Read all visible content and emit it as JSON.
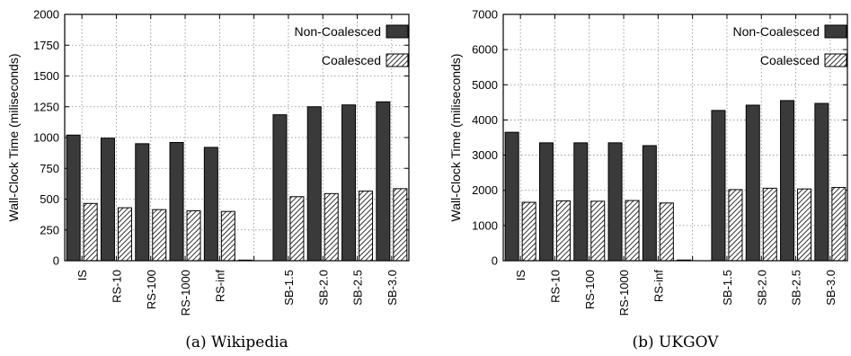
{
  "colors": {
    "non_coalesced": "#3a3a3a",
    "coalesced_hatch": "#000000"
  },
  "chart_data": [
    {
      "type": "bar",
      "caption": "(a) Wikipedia",
      "ylabel": "Wall-Clock Time (miliseconds)",
      "xlabel": "",
      "ylim": [
        0,
        2000
      ],
      "yticks": [
        "0",
        "250",
        "500",
        "750",
        "1000",
        "1250",
        "1500",
        "1750",
        "2000"
      ],
      "ytick_values": [
        0,
        250,
        500,
        750,
        1000,
        1250,
        1500,
        1750,
        2000
      ],
      "grid": true,
      "legend_position": "top-right",
      "categories": [
        "IS",
        "RS-10",
        "RS-100",
        "RS-1000",
        "RS-inf",
        "",
        "SB-1.5",
        "SB-2.0",
        "SB-2.5",
        "SB-3.0"
      ],
      "series": [
        {
          "name": "Non-Coalesced",
          "values": [
            1020,
            995,
            950,
            960,
            920,
            5,
            1185,
            1250,
            1265,
            1290
          ]
        },
        {
          "name": "Coalesced",
          "values": [
            465,
            430,
            415,
            405,
            400,
            0,
            520,
            545,
            565,
            585
          ]
        }
      ]
    },
    {
      "type": "bar",
      "caption": "(b) UKGOV",
      "ylabel": "Wall-Clock Time (miliseconds)",
      "xlabel": "",
      "ylim": [
        0,
        7000
      ],
      "yticks": [
        "0",
        "1000",
        "2000",
        "3000",
        "4000",
        "5000",
        "6000",
        "7000"
      ],
      "ytick_values": [
        0,
        1000,
        2000,
        3000,
        4000,
        5000,
        6000,
        7000
      ],
      "grid": true,
      "legend_position": "top-right",
      "categories": [
        "IS",
        "RS-10",
        "RS-100",
        "RS-1000",
        "RS-inf",
        "",
        "SB-1.5",
        "SB-2.0",
        "SB-2.5",
        "SB-3.0"
      ],
      "series": [
        {
          "name": "Non-Coalesced",
          "values": [
            3650,
            3350,
            3350,
            3350,
            3270,
            20,
            4270,
            4420,
            4550,
            4470
          ]
        },
        {
          "name": "Coalesced",
          "values": [
            1660,
            1700,
            1690,
            1710,
            1640,
            0,
            2020,
            2060,
            2040,
            2080
          ]
        }
      ]
    }
  ]
}
